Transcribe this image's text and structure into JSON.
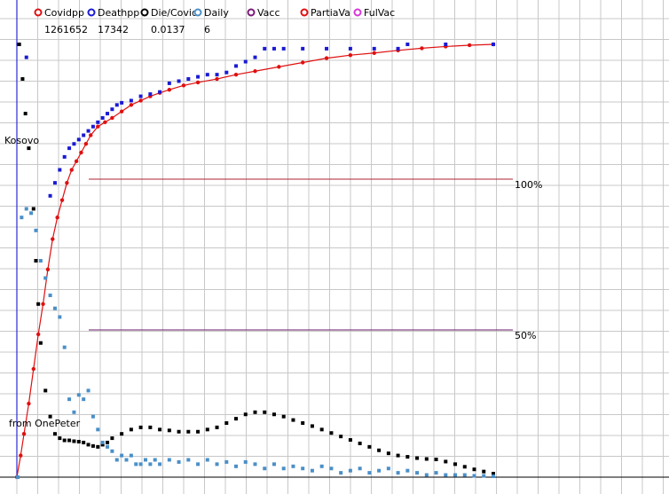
{
  "colors": {
    "background": "#ffffff",
    "grid": "#c8c8c8",
    "axis": "#2b2bd6",
    "covidpp": "#e01010",
    "deathpp": "#1a1ad4",
    "die_covid": "#000000",
    "daily": "#4a8fc8",
    "vacc": "#7a1a7a",
    "partial_vac": "#e01010",
    "full_vac": "#d838d8",
    "ref_100": "#b02030",
    "ref_50": "#6a1a6a"
  },
  "legend": [
    {
      "key": "covidpp",
      "name": "Covidpp",
      "value": "1261652",
      "color": "#e01010"
    },
    {
      "key": "deathpp",
      "name": "Deathpp",
      "value": "17342",
      "color": "#1a1ad4"
    },
    {
      "key": "die_covid",
      "name": "Die/Covid",
      "value": "0.0137",
      "color": "#000000"
    },
    {
      "key": "daily",
      "name": "Daily",
      "value": "6",
      "color": "#4a8fc8"
    },
    {
      "key": "vacc",
      "name": "Vacc",
      "value": "",
      "color": "#7a1a7a"
    },
    {
      "key": "partial_vac",
      "name": "PartiaVa",
      "value": "",
      "color": "#e01010"
    },
    {
      "key": "full_vac",
      "name": "FulVac",
      "value": "",
      "color": "#d838d8"
    }
  ],
  "labels": {
    "country": "Kosovo",
    "credit": "from OnePeter",
    "ref_100": "100%",
    "ref_50": "50%"
  },
  "chart_data": {
    "type": "scatter",
    "x_range": [
      0,
      100
    ],
    "y_range": [
      0,
      100
    ],
    "grid": true,
    "reference_lines": [
      {
        "label": "100%",
        "y": 69.5
      },
      {
        "label": "50%",
        "y": 34.2
      }
    ],
    "series": [
      {
        "name": "Covidpp",
        "style": "line-markers",
        "points": [
          [
            0,
            0
          ],
          [
            0.8,
            5
          ],
          [
            1.5,
            10
          ],
          [
            2.5,
            17
          ],
          [
            3.5,
            25
          ],
          [
            4.5,
            33
          ],
          [
            5.5,
            40
          ],
          [
            6.5,
            48
          ],
          [
            7.5,
            55
          ],
          [
            8.5,
            60
          ],
          [
            9.5,
            64
          ],
          [
            10.5,
            68
          ],
          [
            11.5,
            71
          ],
          [
            12.5,
            73
          ],
          [
            13.5,
            75
          ],
          [
            14.5,
            77
          ],
          [
            15.5,
            79
          ],
          [
            17,
            81
          ],
          [
            18.5,
            82
          ],
          [
            20,
            83
          ],
          [
            22,
            84.5
          ],
          [
            24,
            86
          ],
          [
            26,
            87
          ],
          [
            28,
            88
          ],
          [
            30,
            88.8
          ],
          [
            32,
            89.5
          ],
          [
            35,
            90.5
          ],
          [
            38,
            91.2
          ],
          [
            42,
            92
          ],
          [
            46,
            93
          ],
          [
            50,
            93.8
          ],
          [
            55,
            94.8
          ],
          [
            60,
            95.8
          ],
          [
            65,
            96.8
          ],
          [
            70,
            97.5
          ],
          [
            75,
            98
          ],
          [
            80,
            98.6
          ],
          [
            85,
            99.1
          ],
          [
            90,
            99.5
          ],
          [
            95,
            99.8
          ],
          [
            100,
            100
          ]
        ]
      },
      {
        "name": "Deathpp",
        "style": "step-markers",
        "points": [
          [
            0.3,
            100
          ],
          [
            2,
            97
          ],
          [
            7,
            65
          ],
          [
            8,
            68
          ],
          [
            9,
            71
          ],
          [
            10,
            74
          ],
          [
            11,
            76
          ],
          [
            12,
            77
          ],
          [
            13,
            78
          ],
          [
            14,
            79
          ],
          [
            15,
            80
          ],
          [
            16,
            81
          ],
          [
            17,
            82
          ],
          [
            18,
            83
          ],
          [
            19,
            84
          ],
          [
            20,
            85
          ],
          [
            21,
            86
          ],
          [
            22,
            86.5
          ],
          [
            24,
            87
          ],
          [
            26,
            88
          ],
          [
            28,
            88.5
          ],
          [
            30,
            89
          ],
          [
            32,
            91
          ],
          [
            34,
            91.5
          ],
          [
            36,
            92
          ],
          [
            38,
            92.5
          ],
          [
            40,
            93
          ],
          [
            42,
            93
          ],
          [
            44,
            93.5
          ],
          [
            46,
            95
          ],
          [
            48,
            96
          ],
          [
            50,
            97
          ],
          [
            52,
            99
          ],
          [
            54,
            99
          ],
          [
            56,
            99
          ],
          [
            60,
            99
          ],
          [
            65,
            99
          ],
          [
            70,
            99
          ],
          [
            75,
            99
          ],
          [
            80,
            99
          ],
          [
            82,
            100
          ],
          [
            90,
            100
          ],
          [
            100,
            100
          ]
        ]
      },
      {
        "name": "Die/Covid",
        "style": "markers",
        "points": [
          [
            0.5,
            100
          ],
          [
            1.2,
            92
          ],
          [
            1.8,
            84
          ],
          [
            2.5,
            76
          ],
          [
            3.5,
            62
          ],
          [
            4,
            50
          ],
          [
            4.5,
            40
          ],
          [
            5,
            31
          ],
          [
            6,
            20
          ],
          [
            7,
            14
          ],
          [
            8,
            10
          ],
          [
            9,
            9
          ],
          [
            10,
            8.5
          ],
          [
            11,
            8.5
          ],
          [
            12,
            8.3
          ],
          [
            13,
            8.2
          ],
          [
            14,
            8
          ],
          [
            15,
            7.5
          ],
          [
            16,
            7.2
          ],
          [
            17,
            7
          ],
          [
            18,
            7.5
          ],
          [
            19,
            8
          ],
          [
            20,
            9
          ],
          [
            22,
            10
          ],
          [
            24,
            11
          ],
          [
            26,
            11.5
          ],
          [
            28,
            11.5
          ],
          [
            30,
            11
          ],
          [
            32,
            10.8
          ],
          [
            34,
            10.5
          ],
          [
            36,
            10.5
          ],
          [
            38,
            10.5
          ],
          [
            40,
            11
          ],
          [
            42,
            11.5
          ],
          [
            44,
            12.5
          ],
          [
            46,
            13.5
          ],
          [
            48,
            14.5
          ],
          [
            50,
            15
          ],
          [
            52,
            15
          ],
          [
            54,
            14.5
          ],
          [
            56,
            14
          ],
          [
            58,
            13.2
          ],
          [
            60,
            12.5
          ],
          [
            62,
            11.8
          ],
          [
            64,
            11
          ],
          [
            66,
            10.2
          ],
          [
            68,
            9.4
          ],
          [
            70,
            8.6
          ],
          [
            72,
            7.8
          ],
          [
            74,
            7
          ],
          [
            76,
            6.2
          ],
          [
            78,
            5.5
          ],
          [
            80,
            5
          ],
          [
            82,
            4.7
          ],
          [
            84,
            4.4
          ],
          [
            86,
            4.2
          ],
          [
            88,
            4.1
          ],
          [
            90,
            3.6
          ],
          [
            92,
            3
          ],
          [
            94,
            2.4
          ],
          [
            96,
            1.8
          ],
          [
            98,
            1.3
          ],
          [
            100,
            0.8
          ]
        ]
      },
      {
        "name": "Daily",
        "style": "markers",
        "points": [
          [
            0.2,
            0
          ],
          [
            1,
            60
          ],
          [
            2,
            62
          ],
          [
            3,
            61
          ],
          [
            4,
            57
          ],
          [
            5,
            50
          ],
          [
            6,
            46
          ],
          [
            7,
            42
          ],
          [
            8,
            39
          ],
          [
            9,
            37
          ],
          [
            10,
            30
          ],
          [
            11,
            18
          ],
          [
            12,
            15
          ],
          [
            13,
            19
          ],
          [
            14,
            18
          ],
          [
            15,
            20
          ],
          [
            16,
            14
          ],
          [
            17,
            11
          ],
          [
            18,
            8
          ],
          [
            19,
            7
          ],
          [
            20,
            6
          ],
          [
            21,
            4
          ],
          [
            22,
            5
          ],
          [
            23,
            4
          ],
          [
            24,
            5
          ],
          [
            25,
            3
          ],
          [
            26,
            3
          ],
          [
            27,
            4
          ],
          [
            28,
            3
          ],
          [
            29,
            4
          ],
          [
            30,
            3
          ],
          [
            32,
            4
          ],
          [
            34,
            3.5
          ],
          [
            36,
            4
          ],
          [
            38,
            3
          ],
          [
            40,
            4
          ],
          [
            42,
            3
          ],
          [
            44,
            3.5
          ],
          [
            46,
            2.5
          ],
          [
            48,
            3.5
          ],
          [
            50,
            3
          ],
          [
            52,
            2
          ],
          [
            54,
            3
          ],
          [
            56,
            2
          ],
          [
            58,
            2.5
          ],
          [
            60,
            2
          ],
          [
            62,
            1.5
          ],
          [
            64,
            2.5
          ],
          [
            66,
            2
          ],
          [
            68,
            1
          ],
          [
            70,
            1.5
          ],
          [
            72,
            2
          ],
          [
            74,
            1
          ],
          [
            76,
            1.5
          ],
          [
            78,
            2
          ],
          [
            80,
            1
          ],
          [
            82,
            1.5
          ],
          [
            84,
            1
          ],
          [
            86,
            0.5
          ],
          [
            88,
            1
          ],
          [
            90,
            0.5
          ],
          [
            92,
            0.5
          ],
          [
            94,
            0.5
          ],
          [
            96,
            0.3
          ],
          [
            98,
            0.3
          ],
          [
            100,
            0.2
          ]
        ]
      }
    ]
  }
}
